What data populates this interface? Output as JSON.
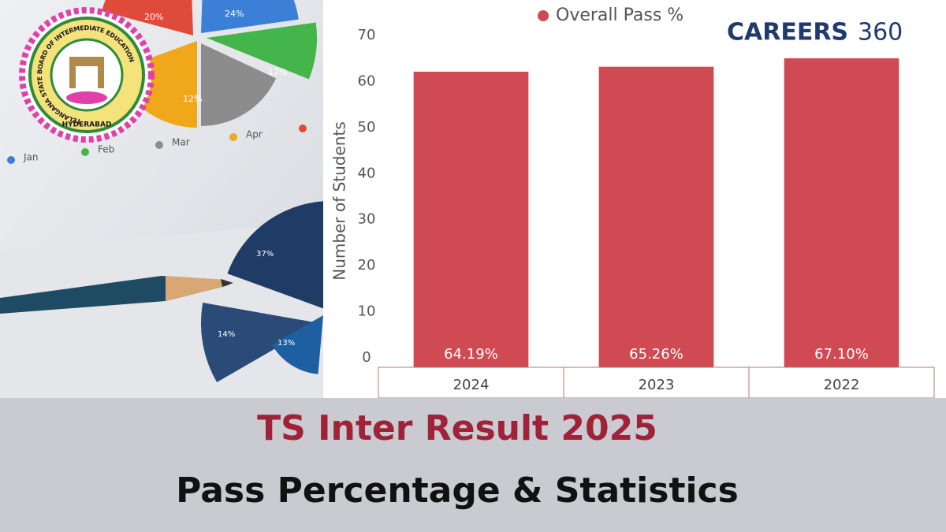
{
  "photo": {
    "pie_top_labels": [
      "20%",
      "24%",
      "17%",
      "12%"
    ],
    "legend": [
      "Jan",
      "Feb",
      "Mar",
      "Apr"
    ],
    "pie_bottom_labels": [
      "37%",
      "14%",
      "13%"
    ]
  },
  "emblem": {
    "ring_text": "TELANGANA STATE BOARD OF INTERMEDIATE EDUCATION",
    "city": "HYDERABAD"
  },
  "logo": {
    "word": "CAREERS",
    "number": "360"
  },
  "chart_data": {
    "type": "bar",
    "categories": [
      "2024",
      "2023",
      "2022"
    ],
    "values": [
      64.19,
      65.26,
      67.1
    ],
    "value_labels": [
      "64.19%",
      "65.26%",
      "67.10%"
    ],
    "color": "#cf4a52",
    "series_name": "Overall Pass %",
    "y_label": "Number of Students",
    "ylim": [
      0,
      70
    ],
    "yticks": [
      0,
      10,
      20,
      30,
      40,
      50,
      60,
      70
    ]
  },
  "footer": {
    "title": "TS Inter Result 2025",
    "subtitle": "Pass Percentage & Statistics"
  }
}
